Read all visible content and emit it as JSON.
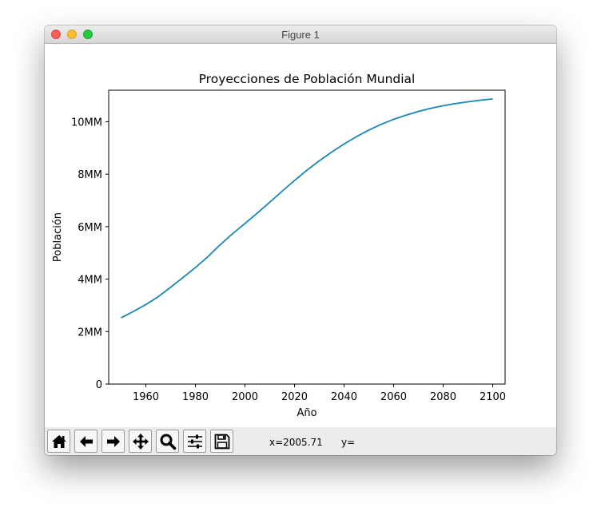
{
  "window": {
    "title": "Figure 1"
  },
  "toolbar": {
    "buttons": [
      {
        "name": "home-button",
        "icon": "home-icon"
      },
      {
        "name": "back-button",
        "icon": "arrow-left-icon"
      },
      {
        "name": "forward-button",
        "icon": "arrow-right-icon"
      },
      {
        "name": "pan-button",
        "icon": "move-icon"
      },
      {
        "name": "zoom-button",
        "icon": "magnifier-icon"
      },
      {
        "name": "configure-subplots-button",
        "icon": "sliders-icon"
      },
      {
        "name": "save-button",
        "icon": "floppy-disk-icon"
      }
    ],
    "x_readout": "x=2005.71",
    "y_readout": "y="
  },
  "chart_data": {
    "type": "line",
    "title": "Proyecciones de Población Mundial",
    "xlabel": "Año",
    "ylabel": "Población",
    "xlim": [
      1945,
      2105
    ],
    "ylim": [
      0,
      11200000000
    ],
    "xticks": [
      1960,
      1980,
      2000,
      2020,
      2040,
      2060,
      2080,
      2100
    ],
    "yticks": [
      {
        "value": 0,
        "label": "0"
      },
      {
        "value": 2000000000,
        "label": "2MM"
      },
      {
        "value": 4000000000,
        "label": "4MM"
      },
      {
        "value": 6000000000,
        "label": "6MM"
      },
      {
        "value": 8000000000,
        "label": "8MM"
      },
      {
        "value": 10000000000,
        "label": "10MM"
      }
    ],
    "grid": false,
    "line_color": "#1a85b8",
    "series": [
      {
        "x": [
          1950,
          1955,
          1960,
          1965,
          1970,
          1975,
          1980,
          1985,
          1990,
          1995,
          2000,
          2005,
          2010,
          2015,
          2020,
          2025,
          2030,
          2035,
          2040,
          2045,
          2050,
          2055,
          2060,
          2065,
          2070,
          2075,
          2080,
          2085,
          2090,
          2095,
          2100
        ],
        "y": [
          2525000000,
          2770000000,
          3030000000,
          3330000000,
          3690000000,
          4060000000,
          4440000000,
          4850000000,
          5310000000,
          5730000000,
          6120000000,
          6520000000,
          6930000000,
          7350000000,
          7760000000,
          8150000000,
          8510000000,
          8840000000,
          9150000000,
          9430000000,
          9680000000,
          9900000000,
          10090000000,
          10250000000,
          10390000000,
          10510000000,
          10610000000,
          10690000000,
          10760000000,
          10820000000,
          10870000000
        ]
      }
    ]
  }
}
